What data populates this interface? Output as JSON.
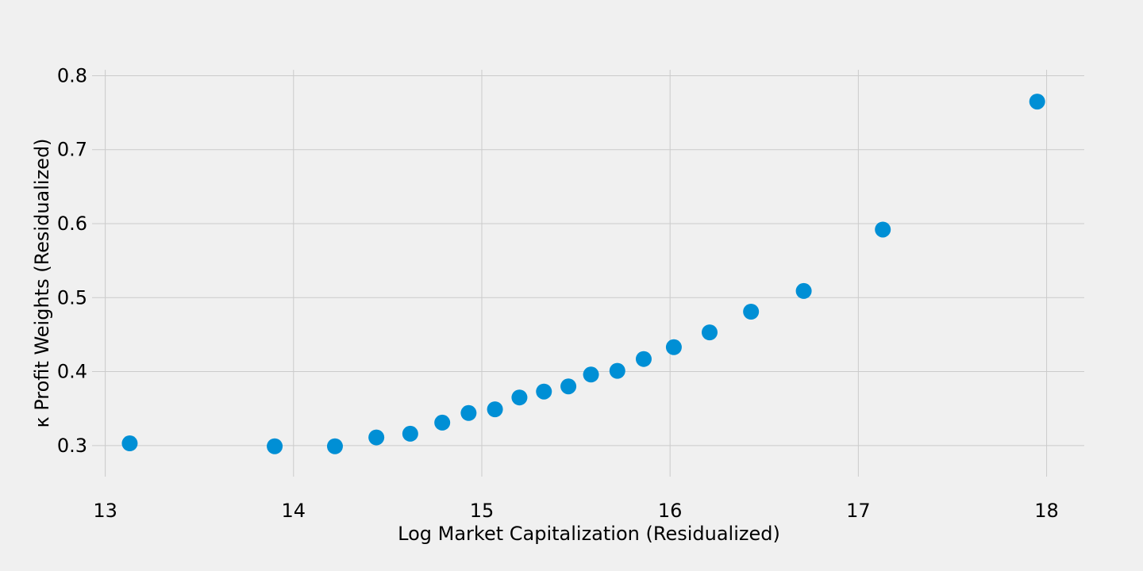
{
  "chart_data": {
    "type": "scatter",
    "xlabel": "Log Market Capitalization (Residualized)",
    "ylabel": "κ Profit Weights (Residualized)",
    "xlim": [
      12.93,
      18.2
    ],
    "ylim": [
      0.258,
      0.808
    ],
    "x_ticks": [
      13,
      14,
      15,
      16,
      17,
      18
    ],
    "y_ticks": [
      0.3,
      0.4,
      0.5,
      0.6,
      0.7,
      0.8
    ],
    "x_tick_labels": [
      "13",
      "14",
      "15",
      "16",
      "17",
      "18"
    ],
    "y_tick_labels": [
      "0.3",
      "0.4",
      "0.5",
      "0.6",
      "0.7",
      "0.8"
    ],
    "grid": true,
    "marker_color": "#008fd5",
    "background_color": "#f0f0f0",
    "grid_color": "#cbcbcb",
    "series": [
      {
        "x": [
          13.13,
          13.9,
          14.22,
          14.44,
          14.62,
          14.79,
          14.93,
          15.07,
          15.2,
          15.33,
          15.46,
          15.58,
          15.72,
          15.86,
          16.02,
          16.21,
          16.43,
          16.71,
          17.13,
          17.95
        ],
        "y": [
          0.303,
          0.299,
          0.299,
          0.311,
          0.316,
          0.331,
          0.344,
          0.349,
          0.365,
          0.373,
          0.38,
          0.396,
          0.401,
          0.417,
          0.433,
          0.453,
          0.481,
          0.509,
          0.592,
          0.765
        ]
      }
    ]
  }
}
